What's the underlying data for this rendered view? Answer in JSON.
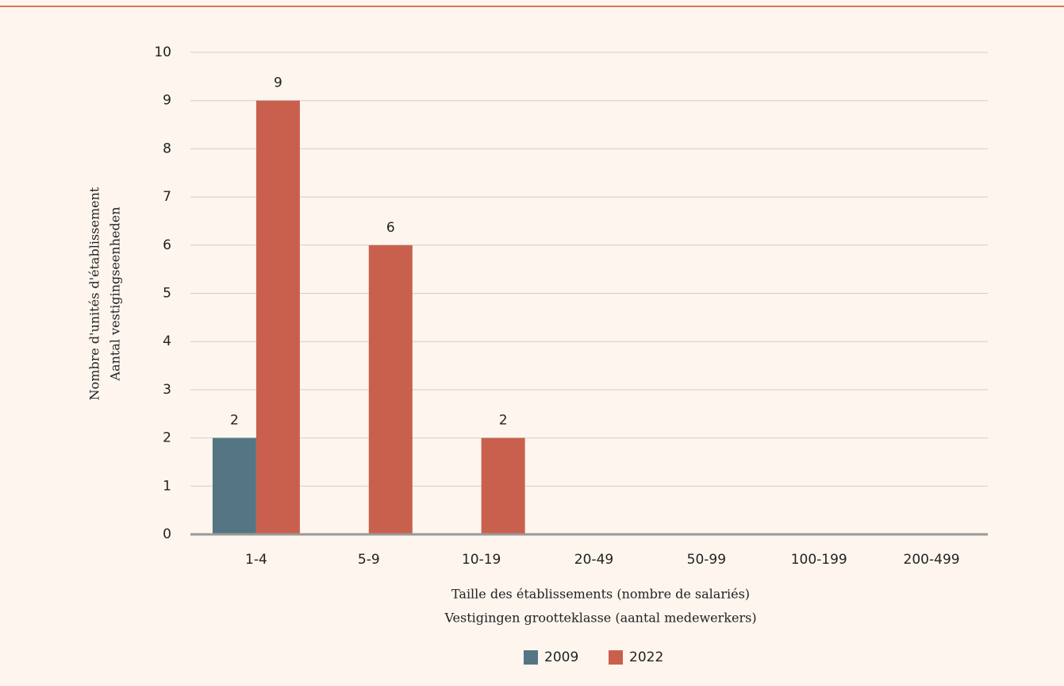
{
  "chart_data": {
    "type": "bar",
    "xlabel": [
      "Taille des établissements (nombre de salariés)",
      "Vestigingen grootteklasse  (aantal medewerkers)"
    ],
    "ylabel": [
      "Nombre d'unités d'établissement",
      "Aantal vestigingseenheden"
    ],
    "categories": [
      "1-4",
      "5-9",
      "10-19",
      "20-49",
      "50-99",
      "100-199",
      "200-499"
    ],
    "series": [
      {
        "name": "2009",
        "color": "#537682",
        "values": [
          2,
          0,
          0,
          0,
          0,
          0,
          0
        ]
      },
      {
        "name": "2022",
        "color": "#c9604d",
        "values": [
          9,
          6,
          2,
          0,
          0,
          0,
          0
        ]
      }
    ],
    "ylim": [
      0,
      10
    ],
    "yticks": [
      0,
      1,
      2,
      3,
      4,
      5,
      6,
      7,
      8,
      9,
      10
    ],
    "grid": true,
    "legend": "bottom"
  }
}
